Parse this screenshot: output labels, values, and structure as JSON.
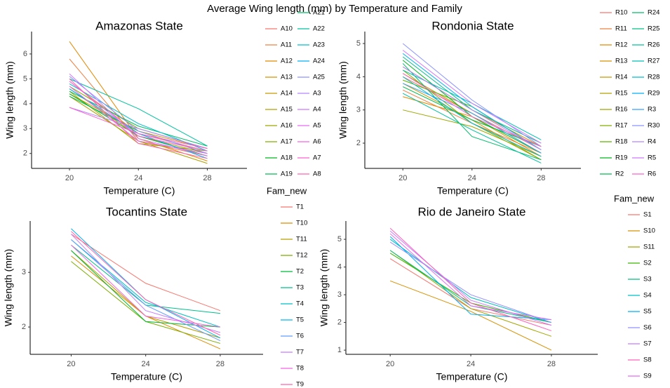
{
  "title": "Average Wing length (mm) by Temperature and Family",
  "chart_data": [
    {
      "type": "line",
      "title": "Amazonas State",
      "x_label": "Temperature (C)",
      "y_label": "Wing length (mm)",
      "x": [
        20,
        24,
        28
      ],
      "xlim": [
        17.8,
        30.3
      ],
      "xticks": [
        20,
        24,
        28
      ],
      "ylim": [
        1.4,
        6.9
      ],
      "yticks": [
        2,
        3,
        4,
        5,
        6
      ],
      "series": [
        {
          "name": "A10",
          "color": "#F8766D",
          "values": [
            4.9,
            2.8,
            2.1
          ]
        },
        {
          "name": "A11",
          "color": "#EE8042",
          "values": [
            5.8,
            2.5,
            1.9
          ]
        },
        {
          "name": "A12",
          "color": "#E38900",
          "values": [
            6.5,
            2.6,
            1.7
          ]
        },
        {
          "name": "A13",
          "color": "#D59100",
          "values": [
            4.4,
            2.9,
            2.2
          ]
        },
        {
          "name": "A14",
          "color": "#C59900",
          "values": [
            4.6,
            2.7,
            2.0
          ]
        },
        {
          "name": "A15",
          "color": "#B2A000",
          "values": [
            4.3,
            2.5,
            1.6
          ]
        },
        {
          "name": "A16",
          "color": "#9DA700",
          "values": [
            4.5,
            2.4,
            2.1
          ]
        },
        {
          "name": "A17",
          "color": "#83AD00",
          "values": [
            4.7,
            3.0,
            2.2
          ]
        },
        {
          "name": "A18",
          "color": "#00B81F",
          "values": [
            4.4,
            2.7,
            1.9
          ]
        },
        {
          "name": "A19",
          "color": "#00BB4E",
          "values": [
            4.3,
            2.9,
            2.0
          ]
        },
        {
          "name": "A21",
          "color": "#00BE6C",
          "values": [
            4.5,
            3.1,
            2.3
          ]
        },
        {
          "name": "A22",
          "color": "#00C19F",
          "values": [
            5.0,
            3.8,
            2.3
          ]
        },
        {
          "name": "A23",
          "color": "#00BDCD",
          "values": [
            4.8,
            3.2,
            2.1
          ]
        },
        {
          "name": "A24",
          "color": "#00B0F3",
          "values": [
            4.6,
            2.8,
            1.8
          ]
        },
        {
          "name": "A25",
          "color": "#8B93FF",
          "values": [
            5.1,
            2.9,
            2.0
          ]
        },
        {
          "name": "A3",
          "color": "#B385FF",
          "values": [
            3.85,
            3.0,
            2.2
          ]
        },
        {
          "name": "A4",
          "color": "#D177FF",
          "values": [
            5.2,
            2.6,
            1.9
          ]
        },
        {
          "name": "A5",
          "color": "#E76BF3",
          "values": [
            4.7,
            2.5,
            2.0
          ]
        },
        {
          "name": "A6",
          "color": "#F564E3",
          "values": [
            4.9,
            2.7,
            2.1
          ]
        },
        {
          "name": "A7",
          "color": "#FD61D1",
          "values": [
            3.85,
            2.8,
            2.2
          ]
        },
        {
          "name": "A8",
          "color": "#FF64B0",
          "values": [
            5.0,
            2.4,
            1.8
          ]
        }
      ]
    },
    {
      "type": "line",
      "title": "Rondonia State",
      "x_label": "Temperature (C)",
      "y_label": "Wing length (mm)",
      "x": [
        20,
        24,
        28
      ],
      "xlim": [
        17.8,
        30.3
      ],
      "xticks": [
        20,
        24,
        28
      ],
      "ylim": [
        1.24,
        5.36
      ],
      "yticks": [
        2,
        3,
        4,
        5
      ],
      "series": [
        {
          "name": "R10",
          "color": "#F8766D",
          "values": [
            4.0,
            2.9,
            1.8
          ]
        },
        {
          "name": "R11",
          "color": "#EE8042",
          "values": [
            3.6,
            2.6,
            1.7
          ]
        },
        {
          "name": "R12",
          "color": "#E38900",
          "values": [
            3.4,
            2.8,
            1.6
          ]
        },
        {
          "name": "R13",
          "color": "#D59100",
          "values": [
            4.3,
            3.0,
            1.9
          ]
        },
        {
          "name": "R14",
          "color": "#C59900",
          "values": [
            3.8,
            2.7,
            1.5
          ]
        },
        {
          "name": "R15",
          "color": "#B2A000",
          "values": [
            4.1,
            2.9,
            1.7
          ]
        },
        {
          "name": "R16",
          "color": "#9DA700",
          "values": [
            3.0,
            2.5,
            1.6
          ]
        },
        {
          "name": "R17",
          "color": "#83AD00",
          "values": [
            4.2,
            2.6,
            1.5
          ]
        },
        {
          "name": "R18",
          "color": "#5FB200",
          "values": [
            3.9,
            3.1,
            1.8
          ]
        },
        {
          "name": "R19",
          "color": "#00B81F",
          "values": [
            4.5,
            2.8,
            1.7
          ]
        },
        {
          "name": "R2",
          "color": "#00BB4E",
          "values": [
            3.7,
            2.7,
            1.9
          ]
        },
        {
          "name": "R24",
          "color": "#00BE6C",
          "values": [
            4.4,
            2.2,
            1.5
          ]
        },
        {
          "name": "R25",
          "color": "#00C086",
          "values": [
            4.6,
            3.0,
            2.0
          ]
        },
        {
          "name": "R26",
          "color": "#00C19F",
          "values": [
            3.5,
            2.4,
            1.4
          ]
        },
        {
          "name": "R27",
          "color": "#00C0B7",
          "values": [
            4.2,
            3.2,
            2.1
          ]
        },
        {
          "name": "R28",
          "color": "#00BDCD",
          "values": [
            4.0,
            2.6,
            1.6
          ]
        },
        {
          "name": "R29",
          "color": "#00B0F3",
          "values": [
            4.7,
            3.1,
            1.8
          ]
        },
        {
          "name": "R3",
          "color": "#35A2FF",
          "values": [
            3.8,
            2.9,
            1.7
          ]
        },
        {
          "name": "R30",
          "color": "#8B93FF",
          "values": [
            5.0,
            3.3,
            1.9
          ]
        },
        {
          "name": "R4",
          "color": "#B385FF",
          "values": [
            4.3,
            3.0,
            1.8
          ]
        },
        {
          "name": "R5",
          "color": "#D177FF",
          "values": [
            4.8,
            3.2,
            2.0
          ]
        },
        {
          "name": "R6",
          "color": "#FD61D1",
          "values": [
            4.1,
            2.8,
            1.9
          ]
        }
      ]
    },
    {
      "type": "line",
      "title": "Tocantins State",
      "x_label": "Temperature (C)",
      "y_label": "Wing length (mm)",
      "legend_title": "Fam_new",
      "x": [
        20,
        24,
        28
      ],
      "xlim": [
        17.8,
        30.3
      ],
      "xticks": [
        20,
        24,
        28
      ],
      "ylim": [
        1.5,
        3.94
      ],
      "yticks": [
        2,
        3
      ],
      "series": [
        {
          "name": "T1",
          "color": "#F8766D",
          "values": [
            3.7,
            2.8,
            2.3
          ]
        },
        {
          "name": "T10",
          "color": "#DE8C00",
          "values": [
            3.3,
            2.2,
            1.6
          ]
        },
        {
          "name": "T11",
          "color": "#B79F00",
          "values": [
            3.4,
            2.2,
            1.8
          ]
        },
        {
          "name": "T12",
          "color": "#7CAE00",
          "values": [
            3.2,
            2.1,
            1.7
          ]
        },
        {
          "name": "T2",
          "color": "#00BA38",
          "values": [
            3.4,
            2.1,
            2.0
          ]
        },
        {
          "name": "T3",
          "color": "#00C08B",
          "values": [
            3.5,
            2.4,
            2.25
          ]
        },
        {
          "name": "T4",
          "color": "#00BFC4",
          "values": [
            3.6,
            2.45,
            2.0
          ]
        },
        {
          "name": "T5",
          "color": "#00B4F0",
          "values": [
            3.8,
            2.5,
            1.8
          ]
        },
        {
          "name": "T6",
          "color": "#619CFF",
          "values": [
            3.6,
            2.4,
            1.75
          ]
        },
        {
          "name": "T7",
          "color": "#C77CFF",
          "values": [
            3.7,
            2.3,
            1.9
          ]
        },
        {
          "name": "T8",
          "color": "#F564E3",
          "values": [
            3.5,
            2.2,
            2.0
          ]
        },
        {
          "name": "T9",
          "color": "#FF64B0",
          "values": [
            3.75,
            2.5,
            1.85
          ]
        }
      ]
    },
    {
      "type": "line",
      "title": "Rio de Janeiro State",
      "x_label": "Temperature (C)",
      "y_label": "Wing length (mm)",
      "legend_title": "Fam_new",
      "x": [
        20,
        24,
        28
      ],
      "xlim": [
        17.8,
        30.3
      ],
      "xticks": [
        20,
        24,
        28
      ],
      "ylim": [
        0.85,
        5.66
      ],
      "yticks": [
        1,
        2,
        3,
        4,
        5
      ],
      "series": [
        {
          "name": "S1",
          "color": "#F8766D",
          "values": [
            4.3,
            2.5,
            1.9
          ]
        },
        {
          "name": "S10",
          "color": "#D89000",
          "values": [
            3.5,
            2.4,
            1.0
          ]
        },
        {
          "name": "S11",
          "color": "#A3A500",
          "values": [
            4.6,
            2.5,
            1.5
          ]
        },
        {
          "name": "S2",
          "color": "#39B600",
          "values": [
            4.5,
            2.7,
            2.0
          ]
        },
        {
          "name": "S3",
          "color": "#00BF7D",
          "values": [
            4.6,
            2.6,
            2.0
          ]
        },
        {
          "name": "S4",
          "color": "#00BFC4",
          "values": [
            5.0,
            2.9,
            2.0
          ]
        },
        {
          "name": "S5",
          "color": "#00B0F6",
          "values": [
            5.1,
            2.3,
            2.1
          ]
        },
        {
          "name": "S6",
          "color": "#9590FF",
          "values": [
            4.9,
            3.0,
            2.0
          ]
        },
        {
          "name": "S7",
          "color": "#C77CFF",
          "values": [
            5.3,
            2.8,
            1.9
          ]
        },
        {
          "name": "S8",
          "color": "#FF62BC",
          "values": [
            5.4,
            2.7,
            1.7
          ]
        },
        {
          "name": "S9",
          "color": "#E76BF3",
          "values": [
            5.2,
            2.6,
            2.1
          ]
        }
      ]
    }
  ]
}
